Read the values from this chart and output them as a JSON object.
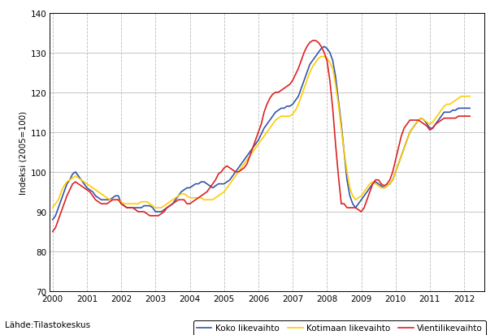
{
  "title": "",
  "ylabel": "Indeksi (2005=100)",
  "source_label": "Lähde:Tilastokeskus",
  "ylim": [
    70,
    140
  ],
  "yticks": [
    70,
    80,
    90,
    100,
    110,
    120,
    130,
    140
  ],
  "xlim_start": 1999.92,
  "xlim_end": 2012.58,
  "xtick_years": [
    2000,
    2001,
    2002,
    2003,
    2004,
    2005,
    2006,
    2007,
    2008,
    2009,
    2010,
    2011,
    2012
  ],
  "legend_labels": [
    "Koko likevaihto",
    "Kotimaan likevaihto",
    "Vientilikevaihto"
  ],
  "colors": [
    "#3355aa",
    "#ffcc00",
    "#dd2222"
  ],
  "koko": [
    88,
    89,
    91,
    93,
    95,
    97,
    98,
    99.5,
    100,
    99,
    98,
    97,
    96,
    95.5,
    95,
    94,
    93.5,
    93,
    93,
    93,
    93,
    93.5,
    94,
    94,
    92,
    91.5,
    91,
    91,
    91,
    91,
    91,
    91,
    91.5,
    91.5,
    91.5,
    91,
    90,
    90,
    90,
    90.5,
    91,
    91.5,
    92,
    93,
    94,
    95,
    95.5,
    96,
    96,
    96.5,
    97,
    97,
    97.5,
    97.5,
    97,
    96.5,
    96,
    96.5,
    97,
    97,
    97,
    97.5,
    98,
    99,
    100,
    101,
    102,
    103,
    104,
    105,
    106,
    107,
    108,
    109.5,
    111,
    112,
    113,
    114,
    115,
    115.5,
    116,
    116,
    116.5,
    116.5,
    117,
    118,
    119,
    121,
    123,
    125,
    127,
    128,
    129,
    130,
    131,
    131.5,
    131,
    130,
    128,
    124,
    118,
    112,
    105,
    98,
    94,
    92,
    91,
    92,
    93,
    94,
    95,
    96,
    97,
    97.5,
    97,
    96.5,
    96,
    96.5,
    97,
    98,
    100,
    102,
    104,
    106,
    108,
    110,
    111,
    112,
    113,
    113.5,
    113,
    112,
    111,
    111,
    112,
    113,
    114,
    115,
    115,
    115,
    115.5,
    115.5,
    116,
    116,
    116,
    116,
    116
  ],
  "kotimaan": [
    91,
    92,
    93,
    95,
    96.5,
    97.5,
    98,
    98.5,
    99,
    98.5,
    98,
    97.5,
    97,
    96.5,
    96,
    95.5,
    95,
    94.5,
    94,
    93.5,
    93,
    93,
    93,
    93,
    92.5,
    92,
    92,
    92,
    92,
    92,
    92,
    92.5,
    92.5,
    92.5,
    92,
    91.5,
    91,
    91,
    91,
    91.5,
    92,
    92.5,
    93,
    93.5,
    94,
    94.5,
    94.5,
    94,
    93.5,
    93.5,
    93.5,
    93.5,
    93.5,
    93,
    93,
    93,
    93,
    93.5,
    94,
    94.5,
    95,
    96,
    97,
    98,
    99,
    100,
    101,
    102,
    103,
    104,
    105,
    106,
    107,
    108,
    109,
    110,
    111,
    112,
    113,
    113.5,
    114,
    114,
    114,
    114,
    114.5,
    115.5,
    117,
    119,
    121,
    123,
    125,
    126.5,
    127.5,
    128.5,
    129,
    129,
    128.5,
    127.5,
    126,
    122,
    117,
    111,
    105,
    100,
    96,
    94,
    93,
    93.5,
    94,
    95,
    96,
    97,
    97.5,
    97,
    96.5,
    96,
    96,
    96.5,
    97,
    98,
    100,
    102,
    104,
    106,
    108,
    110,
    111,
    112,
    113,
    113.5,
    113,
    112.5,
    112,
    112.5,
    113.5,
    114.5,
    115.5,
    116.5,
    117,
    117,
    117.5,
    118,
    118.5,
    119,
    119,
    119,
    119
  ],
  "vienli": [
    85,
    86,
    88,
    90,
    92,
    94,
    95.5,
    97,
    97.5,
    97,
    96.5,
    96,
    95.5,
    95,
    94,
    93,
    92.5,
    92,
    92,
    92,
    92.5,
    93,
    93,
    93,
    92,
    91.5,
    91,
    91,
    91,
    90.5,
    90,
    90,
    90,
    89.5,
    89,
    89,
    89,
    89,
    89.5,
    90,
    91,
    91.5,
    92,
    92.5,
    93,
    93,
    93,
    92,
    92,
    92.5,
    93,
    93.5,
    94,
    94.5,
    95,
    96,
    97,
    98,
    99.5,
    100,
    101,
    101.5,
    101,
    100.5,
    100,
    100,
    100.5,
    101,
    102,
    104,
    106,
    108,
    110,
    112,
    115,
    117,
    118.5,
    119.5,
    120,
    120,
    120.5,
    121,
    121.5,
    122,
    123,
    124.5,
    126,
    128,
    130,
    131.5,
    132.5,
    133,
    133,
    132.5,
    131.5,
    130,
    128,
    123,
    116,
    107,
    99,
    92,
    92,
    91,
    91,
    91,
    91,
    90.5,
    90,
    91,
    93,
    95,
    97,
    98,
    98,
    97,
    96.5,
    97,
    98,
    100,
    103,
    106,
    109,
    111,
    112,
    113,
    113,
    113,
    113,
    112.5,
    112,
    111.5,
    110.5,
    111,
    112,
    112.5,
    113,
    113.5,
    113.5,
    113.5,
    113.5,
    113.5,
    114,
    114,
    114,
    114,
    114
  ]
}
